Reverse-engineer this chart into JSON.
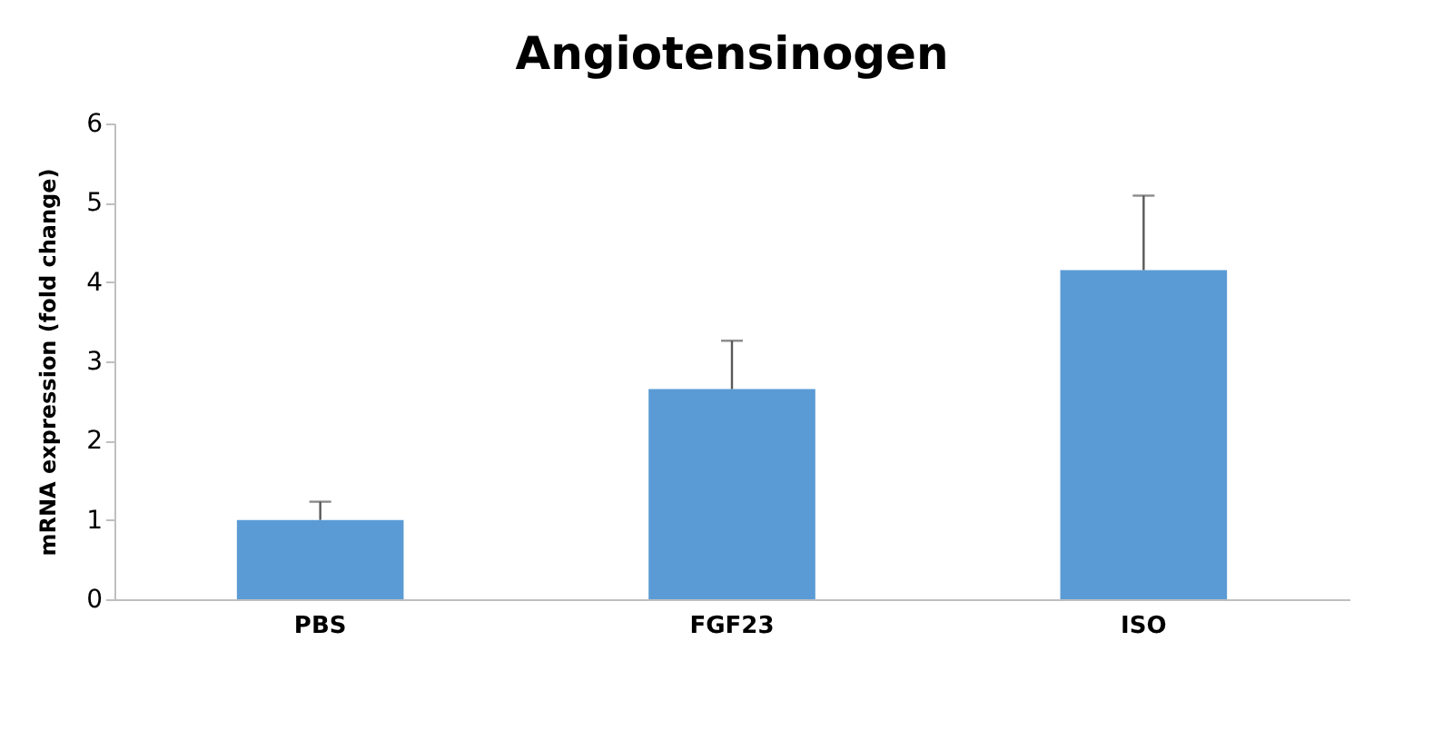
{
  "chart_data": {
    "type": "bar",
    "title": "Angiotensinogen",
    "ylabel": "mRNA expression (fold change)",
    "categories": [
      "PBS",
      "FGF23",
      "ISO"
    ],
    "values": [
      1.0,
      2.65,
      4.15
    ],
    "errors": [
      [
        1.0,
        1.23
      ],
      [
        2.65,
        3.26
      ],
      [
        4.15,
        5.09
      ]
    ],
    "color": "#5b9bd5",
    "ylim": [
      0,
      6
    ],
    "yticks": [
      0,
      1,
      2,
      3,
      4,
      5,
      6
    ],
    "grid": false
  }
}
